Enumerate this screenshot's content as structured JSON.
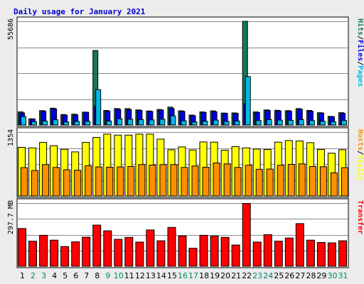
{
  "chart_data": {
    "type": "bar",
    "title": "Daily usage for January 2021",
    "colors": {
      "title": "#0000cc",
      "background": "#ececec",
      "plot_bg": "#ffffff",
      "grid": "#888888",
      "hits": "#117a57",
      "files": "#0000e0",
      "pages": "#00b8e8",
      "visits": "#ffff00",
      "sites": "#ff9000",
      "kbytes": "#ff0000",
      "weekday_label": "#000000",
      "weekend_label": "#008866"
    },
    "categories": [
      "1",
      "2",
      "3",
      "4",
      "5",
      "6",
      "7",
      "8",
      "9",
      "10",
      "11",
      "12",
      "13",
      "14",
      "15",
      "16",
      "17",
      "18",
      "19",
      "20",
      "21",
      "22",
      "23",
      "24",
      "25",
      "26",
      "27",
      "28",
      "29",
      "30",
      "31"
    ],
    "weekend_days": [
      "2",
      "3",
      "9",
      "10",
      "16",
      "17",
      "23",
      "24",
      "30",
      "31"
    ],
    "panels": [
      {
        "name": "requests",
        "max_label": "55686",
        "ymax": 55686,
        "ylabel_parts": [
          {
            "text": "Hits",
            "color": "#117a57"
          },
          {
            "text": "/",
            "color": "#000000"
          },
          {
            "text": "Files",
            "color": "#0000e0"
          },
          {
            "text": "/",
            "color": "#000000"
          },
          {
            "text": "Pages",
            "color": "#00b8e8"
          }
        ],
        "series": [
          {
            "name": "Hits",
            "color": "#117a57",
            "values": [
              7000,
              3300,
              7700,
              9000,
              5600,
              5800,
              6900,
              40000,
              7800,
              8800,
              8800,
              8100,
              7500,
              8300,
              9600,
              7600,
              5300,
              7000,
              7600,
              6400,
              6500,
              55686,
              7000,
              8100,
              7900,
              7700,
              8800,
              7800,
              6600,
              4600,
              6600
            ]
          },
          {
            "name": "Files",
            "color": "#0000e0",
            "values": [
              6500,
              3200,
              7400,
              8700,
              5300,
              5400,
              6800,
              10000,
              7400,
              8400,
              8200,
              7800,
              7300,
              8000,
              8800,
              7300,
              5000,
              6700,
              7100,
              6200,
              6200,
              11500,
              6800,
              7800,
              7600,
              7400,
              8400,
              7400,
              6400,
              4400,
              6300
            ]
          },
          {
            "name": "Pages",
            "color": "#00b8e8",
            "values": [
              4500,
              1800,
              2100,
              2800,
              1600,
              1900,
              2000,
              19000,
              2100,
              3300,
              3100,
              2900,
              2700,
              3100,
              4900,
              2300,
              1600,
              2000,
              2600,
              1900,
              2100,
              26000,
              2400,
              2900,
              2600,
              2500,
              2900,
              2400,
              2000,
              1800,
              2400
            ]
          }
        ]
      },
      {
        "name": "visitors",
        "max_label": "1354",
        "ymax": 1354,
        "ylabel_parts": [
          {
            "text": "Hosts",
            "color": "#ff9000"
          },
          {
            "text": "/",
            "color": "#000000"
          },
          {
            "text": "Visits",
            "color": "#ffff00"
          }
        ],
        "series": [
          {
            "name": "Visits",
            "color": "#ffff00",
            "values": [
              1030,
              1020,
              1135,
              1065,
              990,
              935,
              1135,
              1240,
              1310,
              1290,
              1290,
              1310,
              1310,
              1205,
              980,
              1040,
              975,
              1145,
              1140,
              970,
              1045,
              1020,
              995,
              985,
              1140,
              1175,
              1165,
              1130,
              985,
              905,
              980
            ]
          },
          {
            "name": "Hosts",
            "color": "#ff9000",
            "values": [
              600,
              540,
              665,
              605,
              555,
              545,
              640,
              615,
              610,
              615,
              625,
              665,
              655,
              665,
              665,
              605,
              635,
              610,
              700,
              680,
              605,
              650,
              565,
              570,
              650,
              670,
              680,
              625,
              620,
              490,
              600
            ]
          }
        ]
      },
      {
        "name": "transfer",
        "max_label": "297.7 MB",
        "ymax": 297.7,
        "ylabel_parts": [
          {
            "text": "Transfer",
            "color": "#ff0000"
          }
        ],
        "series": [
          {
            "name": "Transfer",
            "color": "#ff0000",
            "values": [
              178,
              118,
              146,
              123,
              93,
              115,
              137,
              194,
              167,
              127,
              136,
              114,
              171,
              120,
              183,
              143,
              85,
              146,
              142,
              136,
              100,
              296,
              114,
              149,
              118,
              133,
              201,
              123,
              112,
              110,
              120
            ]
          }
        ]
      }
    ]
  }
}
